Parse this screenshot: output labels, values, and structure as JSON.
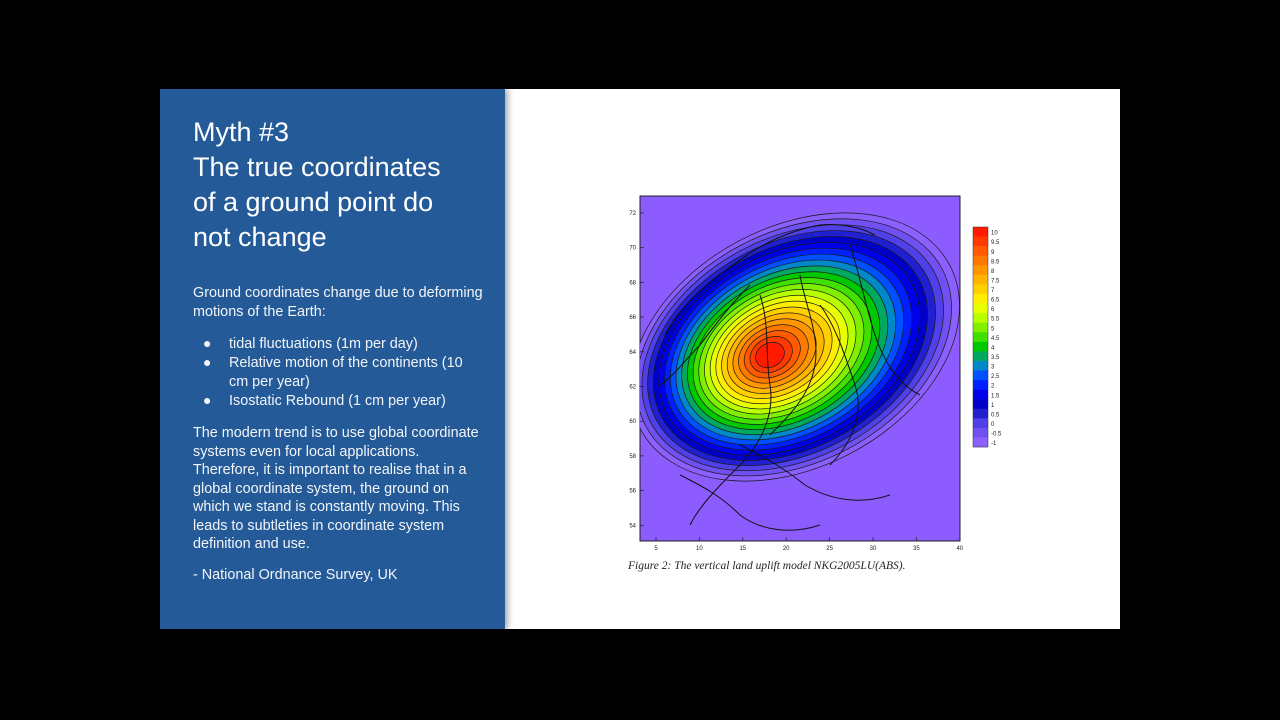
{
  "slide": {
    "title_lines": [
      "Myth #3",
      "The true coordinates",
      "of a ground point do",
      "not change"
    ],
    "intro": "Ground coordinates change due to deforming motions of the Earth:",
    "bullets": [
      "tidal fluctuations (1m per day)",
      "Relative motion of the continents (10 cm per year)",
      "Isostatic Rebound (1 cm per year)"
    ],
    "paragraph": "The modern trend is to use global coordinate systems even for local applications. Therefore, it is important to realise that in a global coordinate system, the ground on which we stand is constantly moving. This leads to subtleties in coordinate system definition and use.",
    "credit": "- National Ordnance Survey, UK",
    "bullet_glyph": "●",
    "panel_color": "#245a97"
  },
  "figure": {
    "caption": "Figure 2: The vertical land uplift model NKG2005LU(ABS).",
    "y_ticks": [
      "72",
      "70",
      "68",
      "66",
      "64",
      "62",
      "60",
      "58",
      "56",
      "54"
    ],
    "x_ticks": [
      "5",
      "10",
      "15",
      "20",
      "25",
      "30",
      "35",
      "40"
    ],
    "colorbar_labels": [
      "10",
      "9.5",
      "9",
      "8.5",
      "8",
      "7.5",
      "7",
      "6.5",
      "6",
      "5.5",
      "5",
      "4.5",
      "4",
      "3.5",
      "3",
      "2.5",
      "2",
      "1.5",
      "1",
      "0.5",
      "0",
      "-0.5",
      "-1"
    ],
    "colorbar_colors": [
      "#ff1a00",
      "#ff3a00",
      "#ff5a00",
      "#ff7800",
      "#ff9600",
      "#ffb400",
      "#ffd000",
      "#ffee00",
      "#e8ff00",
      "#b8ff00",
      "#80f000",
      "#40e000",
      "#00c800",
      "#00a860",
      "#0088c8",
      "#0050ff",
      "#0020ff",
      "#0000e8",
      "#0000c8",
      "#2020d0",
      "#5040e8",
      "#7050f0",
      "#8c60ff"
    ],
    "background_color": "#8c5cff"
  }
}
